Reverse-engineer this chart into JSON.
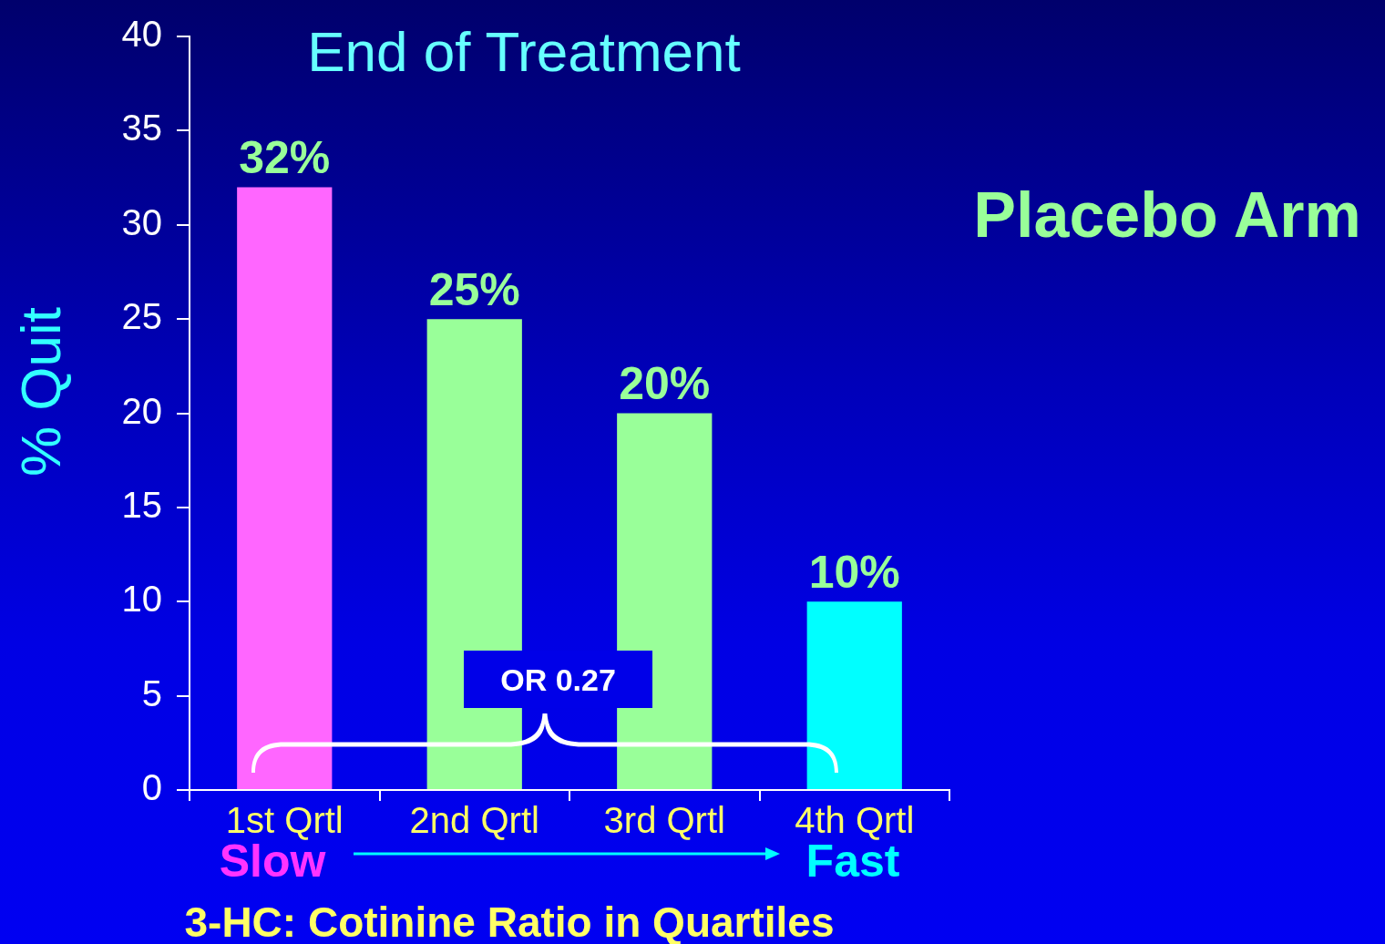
{
  "chart_data": {
    "type": "bar",
    "title": "End of Treatment",
    "xlabel": "3-HC: Cotinine Ratio in Quartiles",
    "ylabel": "% Quit",
    "categories": [
      "1st Qrtl",
      "2nd Qrtl",
      "3rd Qrtl",
      "4th Qrtl"
    ],
    "values": [
      32,
      25,
      20,
      10
    ],
    "colors": [
      "#ff66ff",
      "#99ff99",
      "#99ff99",
      "#00ffff"
    ],
    "value_labels": [
      "32%",
      "25%",
      "20%",
      "10%"
    ],
    "ylim": [
      0,
      40
    ],
    "yticks": [
      0,
      5,
      10,
      15,
      20,
      25,
      30,
      35,
      40
    ],
    "annotations": [
      "Placebo Arm",
      "OR 0.27",
      "Slow",
      "Fast"
    ],
    "legend": false
  }
}
